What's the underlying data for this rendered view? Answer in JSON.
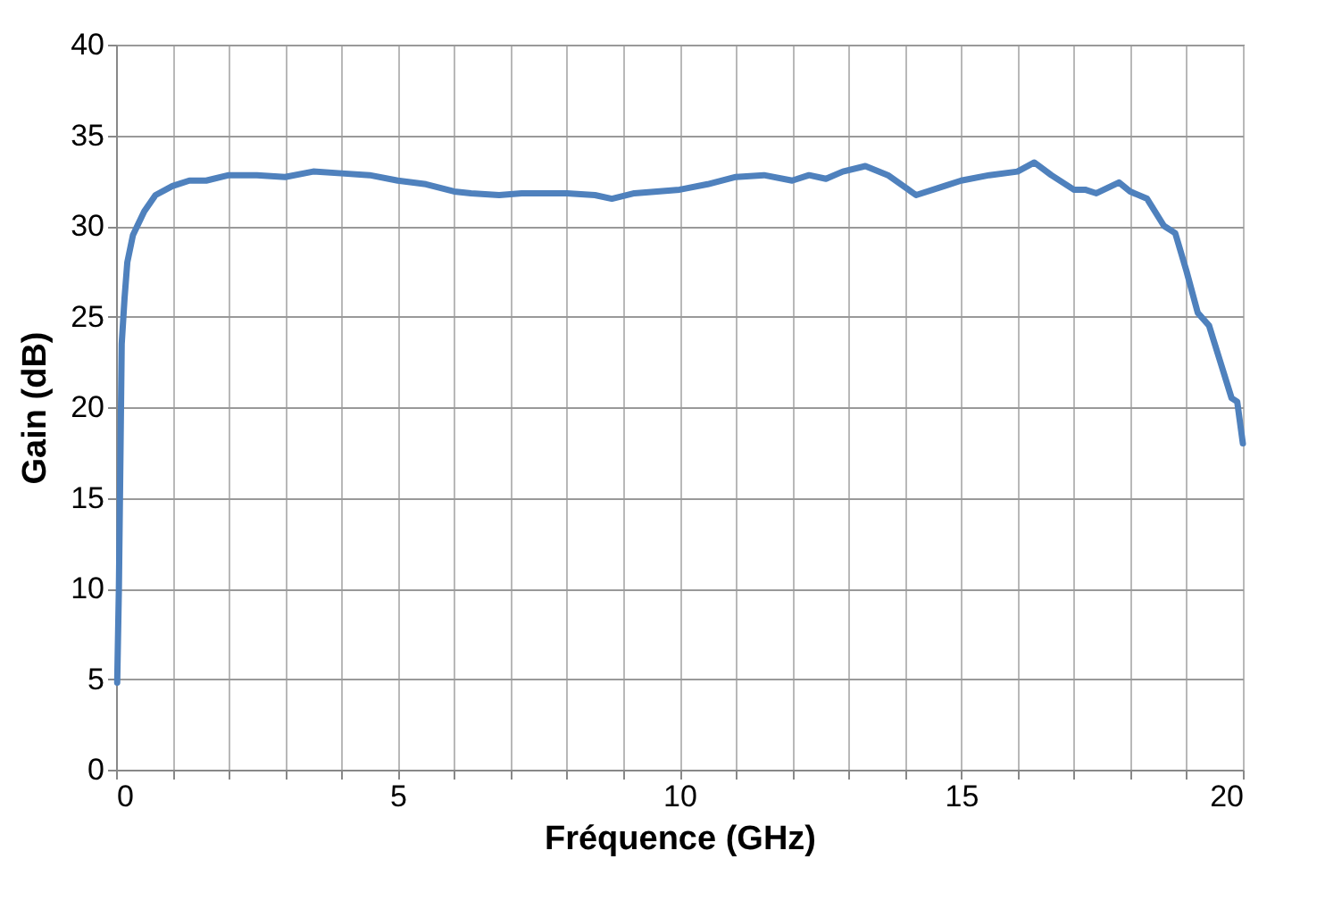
{
  "chart_data": {
    "type": "line",
    "xlabel": "Fréquence (GHz)",
    "ylabel": "Gain  (dB)",
    "x": [
      0.02,
      0.05,
      0.08,
      0.1,
      0.15,
      0.2,
      0.3,
      0.5,
      0.7,
      1,
      1.3,
      1.6,
      2,
      2.5,
      3,
      3.5,
      4,
      4.5,
      5,
      5.5,
      6,
      6.3,
      6.8,
      7.2,
      8,
      8.5,
      8.8,
      9.2,
      10,
      10.5,
      11,
      11.5,
      12,
      12.3,
      12.6,
      12.9,
      13.3,
      13.7,
      14.2,
      14.7,
      15,
      15.5,
      16,
      16.3,
      16.6,
      17,
      17.2,
      17.4,
      17.8,
      18,
      18.3,
      18.6,
      18.8,
      19,
      19.2,
      19.4,
      19.6,
      19.8,
      19.9,
      20
    ],
    "series": [
      {
        "color": "#4f81bd",
        "values": [
          4.8,
          10,
          18,
          23.5,
          26,
          28,
          29.5,
          30.8,
          31.7,
          32.2,
          32.5,
          32.5,
          32.8,
          32.8,
          32.7,
          33,
          32.9,
          32.8,
          32.5,
          32.3,
          31.9,
          31.8,
          31.7,
          31.8,
          31.8,
          31.7,
          31.5,
          31.8,
          32,
          32.3,
          32.7,
          32.8,
          32.5,
          32.8,
          32.6,
          33,
          33.3,
          32.8,
          31.7,
          32.2,
          32.5,
          32.8,
          33,
          33.5,
          32.8,
          32,
          32,
          31.8,
          32.4,
          31.9,
          31.5,
          30,
          29.6,
          27.5,
          25.2,
          24.5,
          22.5,
          20.5,
          20.3,
          18
        ]
      }
    ],
    "xlim": [
      0,
      20
    ],
    "ylim": [
      0,
      40
    ],
    "xticks": [
      0,
      {
        "value": 1,
        "label": null
      },
      {
        "value": 2,
        "label": null
      },
      {
        "value": 3,
        "label": null
      },
      {
        "value": 4,
        "label": null
      },
      5,
      {
        "value": 6,
        "label": null
      },
      {
        "value": 7,
        "label": null
      },
      {
        "value": 8,
        "label": null
      },
      {
        "value": 9,
        "label": null
      },
      10,
      {
        "value": 11,
        "label": null
      },
      {
        "value": 12,
        "label": null
      },
      {
        "value": 13,
        "label": null
      },
      {
        "value": 14,
        "label": null
      },
      15,
      {
        "value": 16,
        "label": null
      },
      {
        "value": 17,
        "label": null
      },
      {
        "value": 18,
        "label": null
      },
      {
        "value": 19,
        "label": null
      },
      20
    ],
    "yticks": [
      0,
      5,
      10,
      15,
      20,
      25,
      30,
      35,
      40
    ],
    "grid": true,
    "marker": "none",
    "line_style": "solid"
  }
}
